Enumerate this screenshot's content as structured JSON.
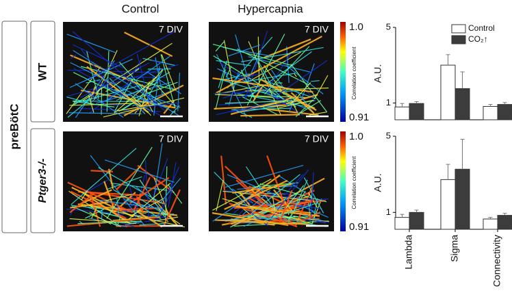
{
  "columns": [
    "Control",
    "Hypercapnia"
  ],
  "row_group": "preBötC",
  "rows": [
    "WT",
    "Ptger3-/-"
  ],
  "panel_label": "7 DIV",
  "colorbar": {
    "title": "Correlation coefficient",
    "max": "1.0",
    "min": "0.91"
  },
  "chart_data": [
    {
      "type": "bar",
      "ylabel": "A.U.",
      "log_scale": true,
      "ylim": [
        0.7,
        5
      ],
      "yticks": [
        1,
        5
      ],
      "legend": "top-right",
      "series": [
        {
          "name": "Control",
          "color": "#ffffff",
          "values": [
            0.92,
            2.24,
            0.93
          ],
          "errors": [
            0.07,
            0.56,
            0.04
          ]
        },
        {
          "name": "CO₂↑",
          "color": "#3c3c3c",
          "values": [
            0.99,
            1.36,
            0.97
          ],
          "errors": [
            0.04,
            0.58,
            0.04
          ]
        }
      ]
    },
    {
      "type": "bar",
      "ylabel": "A.U.",
      "log_scale": true,
      "ylim": [
        0.7,
        5
      ],
      "yticks": [
        1,
        5
      ],
      "categories": [
        "Lambda",
        "Sigma",
        "Connectivity"
      ],
      "series": [
        {
          "color": "#ffffff",
          "values": [
            0.9,
            2.0,
            0.87
          ],
          "errors": [
            0.06,
            0.76,
            0.03
          ]
        },
        {
          "color": "#3c3c3c",
          "values": [
            1.0,
            2.49,
            0.94
          ],
          "errors": [
            0.05,
            2.2,
            0.04
          ]
        }
      ]
    }
  ]
}
